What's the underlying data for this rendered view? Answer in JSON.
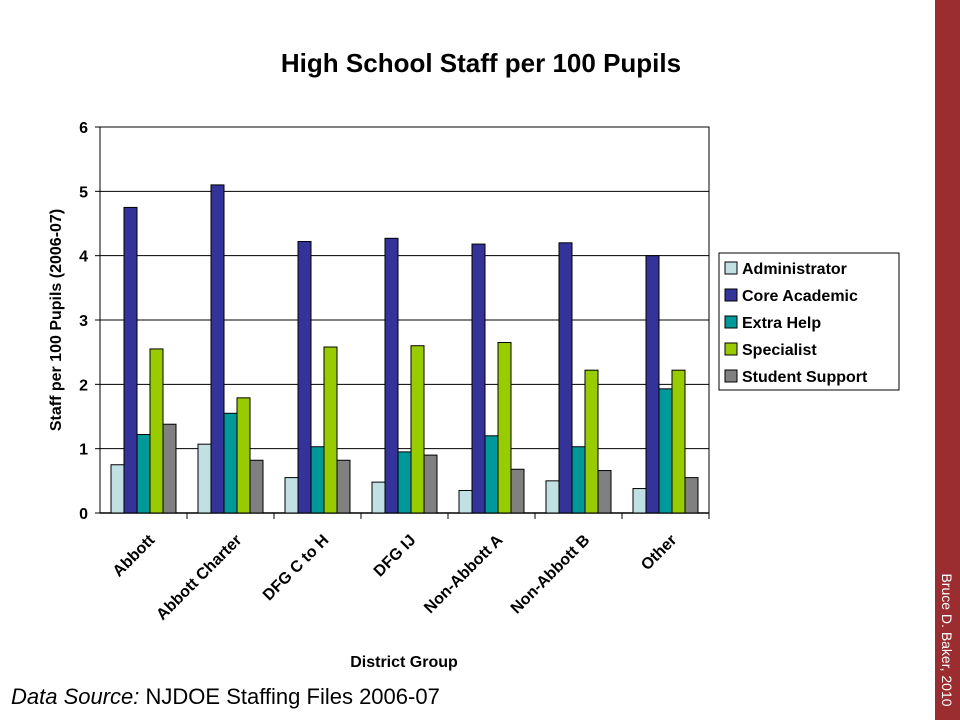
{
  "chart_data": {
    "type": "bar",
    "title": "High School Staff per 100 Pupils",
    "xlabel": "District Group",
    "ylabel": "Staff per 100 Pupils (2006-07)",
    "ylim": [
      0,
      6
    ],
    "yticks": [
      "0",
      "1",
      "2",
      "3",
      "4",
      "5",
      "6"
    ],
    "grid": true,
    "legend_position": "right",
    "categories": [
      "Abbott",
      "Abbott Charter",
      "DFG C to H",
      "DFG IJ",
      "Non-Abbott A",
      "Non-Abbott B",
      "Other"
    ],
    "series": [
      {
        "name": "Administrator",
        "color": "#c0e0e4",
        "values": [
          0.75,
          1.07,
          0.55,
          0.48,
          0.35,
          0.5,
          0.38
        ]
      },
      {
        "name": "Core Academic",
        "color": "#333399",
        "values": [
          4.75,
          5.1,
          4.22,
          4.27,
          4.18,
          4.2,
          4.0
        ]
      },
      {
        "name": "Extra Help",
        "color": "#009999",
        "values": [
          1.22,
          1.55,
          1.03,
          0.95,
          1.2,
          1.03,
          1.93
        ]
      },
      {
        "name": "Specialist",
        "color": "#99cc00",
        "values": [
          2.55,
          1.79,
          2.58,
          2.6,
          2.65,
          2.22,
          2.22
        ]
      },
      {
        "name": "Student Support",
        "color": "#808080",
        "values": [
          1.38,
          0.82,
          0.82,
          0.9,
          0.68,
          0.66,
          0.55
        ]
      }
    ]
  },
  "source": {
    "label": "Data Source:",
    "text": " NJDOE Staffing Files 2006-07"
  },
  "credit": "Bruce D. Baker, 2010",
  "sidebar_color": "#9b2c2f"
}
